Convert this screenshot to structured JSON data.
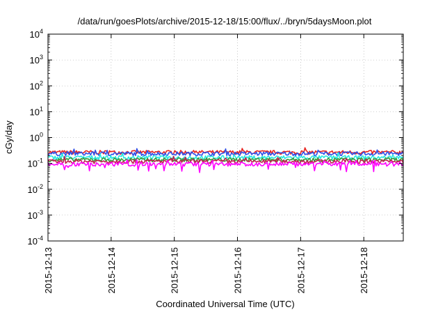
{
  "chart_data": {
    "type": "line",
    "title": "/data/run/goesPlots/archive/2015-12-18/15:00/flux/../bryn/5daysMoon.plot",
    "xlabel": "Coordinated Universal Time (UTC)",
    "ylabel": "cGy/day",
    "y_scale": "log",
    "ylim": [
      0.0001,
      10000
    ],
    "y_ticks": [
      {
        "base": "10",
        "exp": "-4"
      },
      {
        "base": "10",
        "exp": "-3"
      },
      {
        "base": "10",
        "exp": "-2"
      },
      {
        "base": "10",
        "exp": "-1"
      },
      {
        "base": "10",
        "exp": "0"
      },
      {
        "base": "10",
        "exp": "1"
      },
      {
        "base": "10",
        "exp": "2"
      },
      {
        "base": "10",
        "exp": "3"
      },
      {
        "base": "10",
        "exp": "4"
      }
    ],
    "x_range": [
      "2015-12-13",
      "2015-12-18T15:00"
    ],
    "x_ticks": [
      "2015-12-13",
      "2015-12-14",
      "2015-12-15",
      "2015-12-16",
      "2015-12-17",
      "2015-12-18"
    ],
    "grid": true,
    "legend": "none",
    "series": [
      {
        "color": "#e8231f",
        "level": 0.27
      },
      {
        "color": "#2f4fe8",
        "level": 0.24
      },
      {
        "color": "#26e8e0",
        "level": 0.17
      },
      {
        "color": "#3a9a3a",
        "level": 0.14
      },
      {
        "color": "#c02050",
        "level": 0.12
      },
      {
        "color": "#ff00ff",
        "level": 0.095
      }
    ]
  }
}
